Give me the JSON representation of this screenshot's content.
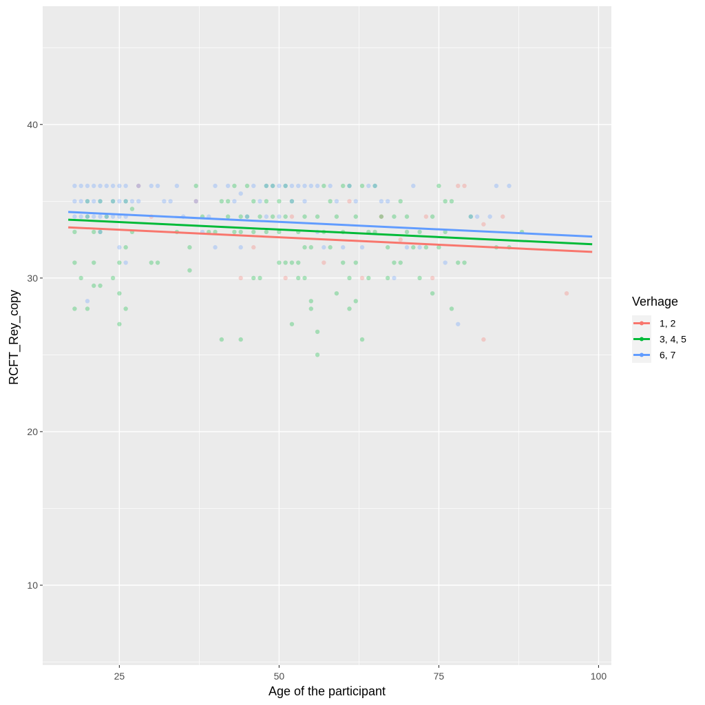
{
  "chart_data": {
    "type": "scatter",
    "title": "",
    "xlabel": "Age of the participant",
    "ylabel": "RCFT_Rey_copy",
    "xlim": [
      13,
      102
    ],
    "ylim": [
      4.8,
      47.7
    ],
    "xticks": [
      25,
      50,
      75,
      100
    ],
    "yticks": [
      10,
      20,
      30,
      40
    ],
    "legend_title": "Verhage",
    "legend_position": "right",
    "grid": true,
    "series": [
      {
        "name": "1, 2",
        "color": "#F8766D",
        "trend": {
          "x": [
            17,
            99
          ],
          "y": [
            33.3,
            31.7
          ]
        },
        "points": [
          [
            28,
            36
          ],
          [
            44,
            30
          ],
          [
            46,
            32
          ],
          [
            51,
            30
          ],
          [
            57,
            31
          ],
          [
            63,
            30
          ],
          [
            69,
            32.5
          ],
          [
            73,
            34
          ],
          [
            74,
            30
          ],
          [
            78,
            36
          ],
          [
            79,
            36
          ],
          [
            82,
            33.5
          ],
          [
            82,
            26
          ],
          [
            85,
            34
          ],
          [
            95,
            29
          ],
          [
            52,
            34
          ],
          [
            61,
            35
          ],
          [
            30,
            34
          ],
          [
            37,
            35
          ],
          [
            66,
            34
          ]
        ]
      },
      {
        "name": "3, 4, 5",
        "color": "#00BA38",
        "trend": {
          "x": [
            17,
            99
          ],
          "y": [
            33.8,
            32.2
          ]
        },
        "points": [
          [
            18,
            33
          ],
          [
            18,
            31
          ],
          [
            18,
            28
          ],
          [
            19,
            30
          ],
          [
            20,
            28
          ],
          [
            20,
            34
          ],
          [
            21,
            33
          ],
          [
            21,
            31
          ],
          [
            21,
            29.5
          ],
          [
            22,
            33
          ],
          [
            22,
            29.5
          ],
          [
            22,
            35
          ],
          [
            24,
            30
          ],
          [
            24,
            35
          ],
          [
            25,
            31
          ],
          [
            25,
            29
          ],
          [
            25,
            27
          ],
          [
            26,
            32
          ],
          [
            26,
            28
          ],
          [
            26,
            35
          ],
          [
            27,
            34.5
          ],
          [
            27,
            33
          ],
          [
            30,
            31
          ],
          [
            31,
            31
          ],
          [
            36,
            32
          ],
          [
            36,
            30.5
          ],
          [
            37,
            36
          ],
          [
            38,
            34
          ],
          [
            40,
            33
          ],
          [
            41,
            35
          ],
          [
            41,
            26
          ],
          [
            42,
            34
          ],
          [
            43,
            33
          ],
          [
            43,
            36
          ],
          [
            44,
            34
          ],
          [
            44,
            33
          ],
          [
            44,
            26
          ],
          [
            45,
            36
          ],
          [
            45,
            34
          ],
          [
            46,
            35
          ],
          [
            46,
            30
          ],
          [
            47,
            34
          ],
          [
            47,
            30
          ],
          [
            48,
            33
          ],
          [
            48,
            35
          ],
          [
            49,
            36
          ],
          [
            49,
            34
          ],
          [
            50,
            35
          ],
          [
            50,
            33
          ],
          [
            50,
            31
          ],
          [
            51,
            36
          ],
          [
            51,
            34
          ],
          [
            51,
            31
          ],
          [
            52,
            35
          ],
          [
            52,
            31
          ],
          [
            52,
            27
          ],
          [
            53,
            33
          ],
          [
            53,
            31
          ],
          [
            53,
            30
          ],
          [
            54,
            34
          ],
          [
            54,
            32
          ],
          [
            54,
            30
          ],
          [
            55,
            32
          ],
          [
            55,
            28.5
          ],
          [
            55,
            28
          ],
          [
            56,
            26.5
          ],
          [
            56,
            25
          ],
          [
            56,
            34
          ],
          [
            57,
            36
          ],
          [
            57,
            33
          ],
          [
            58,
            35
          ],
          [
            58,
            32
          ],
          [
            59,
            34
          ],
          [
            59,
            29
          ],
          [
            60,
            33
          ],
          [
            60,
            31
          ],
          [
            61,
            36
          ],
          [
            61,
            30
          ],
          [
            61,
            28
          ],
          [
            62,
            34
          ],
          [
            62,
            31
          ],
          [
            62,
            28.5
          ],
          [
            63,
            36
          ],
          [
            63,
            26
          ],
          [
            64,
            33
          ],
          [
            64,
            30
          ],
          [
            65,
            33
          ],
          [
            66,
            34
          ],
          [
            67,
            32
          ],
          [
            67,
            30
          ],
          [
            68,
            34
          ],
          [
            68,
            31
          ],
          [
            69,
            35
          ],
          [
            69,
            31
          ],
          [
            70,
            34
          ],
          [
            70,
            33
          ],
          [
            72,
            33
          ],
          [
            72,
            30
          ],
          [
            73,
            32
          ],
          [
            74,
            34
          ],
          [
            74,
            29
          ],
          [
            75,
            36
          ],
          [
            75,
            32
          ],
          [
            76,
            33
          ],
          [
            76,
            35
          ],
          [
            77,
            35
          ],
          [
            77,
            28
          ],
          [
            78,
            31
          ],
          [
            79,
            31
          ],
          [
            80,
            34
          ],
          [
            84,
            32
          ],
          [
            86,
            32
          ],
          [
            88,
            33
          ],
          [
            20,
            35
          ],
          [
            23,
            34
          ],
          [
            34,
            33
          ],
          [
            39,
            33
          ],
          [
            42,
            35
          ],
          [
            46,
            33
          ],
          [
            48,
            36
          ],
          [
            60,
            36
          ],
          [
            65,
            36
          ],
          [
            71,
            32
          ]
        ]
      },
      {
        "name": "6, 7",
        "color": "#619CFF",
        "trend": {
          "x": [
            17,
            99
          ],
          "y": [
            34.3,
            32.7
          ]
        },
        "points": [
          [
            18,
            36
          ],
          [
            19,
            36
          ],
          [
            20,
            36
          ],
          [
            21,
            36
          ],
          [
            22,
            36
          ],
          [
            23,
            36
          ],
          [
            24,
            36
          ],
          [
            25,
            36
          ],
          [
            26,
            36
          ],
          [
            18,
            35
          ],
          [
            19,
            35
          ],
          [
            20,
            35
          ],
          [
            21,
            35
          ],
          [
            22,
            35
          ],
          [
            24,
            35
          ],
          [
            25,
            35
          ],
          [
            26,
            35
          ],
          [
            18,
            34
          ],
          [
            19,
            34
          ],
          [
            20,
            34
          ],
          [
            21,
            34
          ],
          [
            22,
            34
          ],
          [
            23,
            34
          ],
          [
            24,
            34
          ],
          [
            25,
            34
          ],
          [
            26,
            34
          ],
          [
            20,
            28.5
          ],
          [
            22,
            33
          ],
          [
            25,
            32
          ],
          [
            26,
            31
          ],
          [
            27,
            35
          ],
          [
            28,
            35
          ],
          [
            28,
            36
          ],
          [
            30,
            36
          ],
          [
            31,
            36
          ],
          [
            32,
            35
          ],
          [
            33,
            35
          ],
          [
            34,
            36
          ],
          [
            35,
            34
          ],
          [
            37,
            35
          ],
          [
            38,
            33
          ],
          [
            39,
            34
          ],
          [
            40,
            32
          ],
          [
            40,
            36
          ],
          [
            42,
            36
          ],
          [
            43,
            35
          ],
          [
            44,
            35.5
          ],
          [
            44,
            32
          ],
          [
            45,
            34
          ],
          [
            46,
            36
          ],
          [
            47,
            35
          ],
          [
            48,
            34
          ],
          [
            49,
            36
          ],
          [
            50,
            34
          ],
          [
            51,
            36
          ],
          [
            52,
            35
          ],
          [
            53,
            36
          ],
          [
            54,
            35
          ],
          [
            55,
            36
          ],
          [
            56,
            33
          ],
          [
            57,
            32
          ],
          [
            58,
            36
          ],
          [
            59,
            35
          ],
          [
            60,
            32
          ],
          [
            61,
            36
          ],
          [
            62,
            35
          ],
          [
            63,
            32
          ],
          [
            64,
            36
          ],
          [
            65,
            36
          ],
          [
            66,
            35
          ],
          [
            67,
            35
          ],
          [
            68,
            30
          ],
          [
            70,
            32
          ],
          [
            71,
            36
          ],
          [
            72,
            32
          ],
          [
            76,
            31
          ],
          [
            78,
            27
          ],
          [
            80,
            34
          ],
          [
            81,
            34
          ],
          [
            83,
            34
          ],
          [
            84,
            36
          ],
          [
            86,
            36
          ],
          [
            48,
            36
          ],
          [
            50,
            36
          ],
          [
            52,
            36
          ],
          [
            54,
            36
          ],
          [
            56,
            36
          ]
        ]
      }
    ]
  }
}
